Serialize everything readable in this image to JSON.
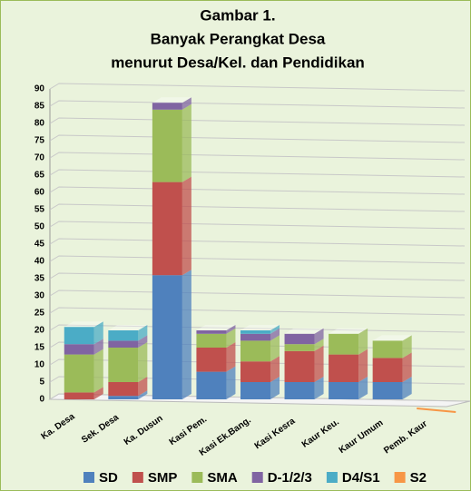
{
  "chart_data": {
    "type": "bar",
    "stacked": true,
    "title": [
      "Gambar 1.",
      "Banyak Perangkat Desa",
      "menurut Desa/Kel. dan Pendidikan"
    ],
    "categories": [
      "Ka. Desa",
      "Sek. Desa",
      "Ka. Dusun",
      "Kasi Pem.",
      "Kasi Ek.Bang.",
      "Kasi Kesra",
      "Kaur Keu.",
      "Kaur Umum",
      "Pemb. Kaur"
    ],
    "series": [
      {
        "name": "SD",
        "color": "#4f81bd",
        "values": [
          0,
          1,
          36,
          8,
          5,
          5,
          5,
          5,
          0
        ]
      },
      {
        "name": "SMP",
        "color": "#c0504d",
        "values": [
          2,
          4,
          27,
          7,
          6,
          9,
          8,
          7,
          0
        ]
      },
      {
        "name": "SMA",
        "color": "#9bbb59",
        "values": [
          11,
          10,
          21,
          4,
          6,
          2,
          6,
          5,
          0
        ]
      },
      {
        "name": "D-1/2/3",
        "color": "#8064a2",
        "values": [
          3,
          2,
          2,
          1,
          2,
          3,
          0,
          0,
          0
        ]
      },
      {
        "name": "D4/S1",
        "color": "#4bacc6",
        "values": [
          5,
          3,
          0,
          0,
          1,
          0,
          0,
          0,
          0
        ]
      },
      {
        "name": "S2",
        "color": "#f79646",
        "values": [
          0,
          0,
          0,
          0,
          0,
          0,
          0,
          0,
          0
        ]
      }
    ],
    "ylim": [
      0,
      90
    ],
    "yticks": [
      0,
      5,
      10,
      15,
      20,
      25,
      30,
      35,
      40,
      45,
      50,
      55,
      60,
      65,
      70,
      75,
      80,
      85,
      90
    ],
    "grid": true,
    "legend": "bottom"
  }
}
